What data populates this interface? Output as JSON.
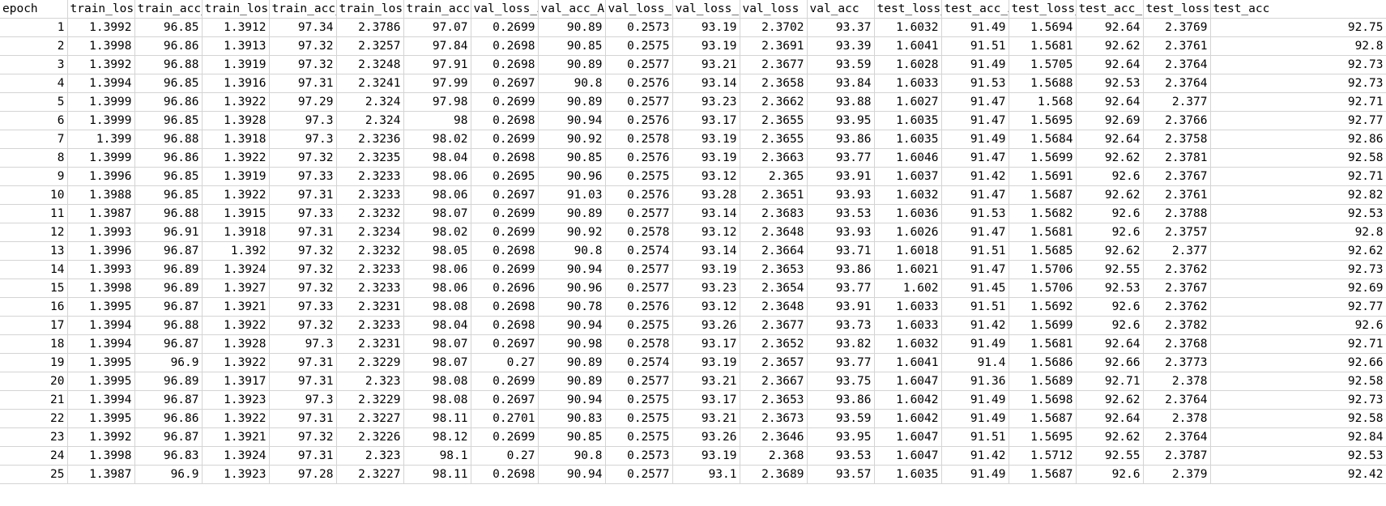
{
  "sheet": {
    "headers": [
      "epoch",
      "train_loss",
      "train_acc_",
      "train_loss",
      "train_acc_",
      "train_loss",
      "train_acc",
      "val_loss_A",
      "val_acc_A",
      "val_loss_B",
      "val_loss_B",
      "val_loss",
      "val_acc",
      "test_loss_",
      "test_acc_A",
      "test_loss_",
      "test_acc_B",
      "test_loss",
      "test_acc"
    ],
    "rows": [
      [
        "1",
        "1.3992",
        "96.85",
        "1.3912",
        "97.34",
        "2.3786",
        "97.07",
        "0.2699",
        "90.89",
        "0.2573",
        "93.19",
        "2.3702",
        "93.37",
        "1.6032",
        "91.49",
        "1.5694",
        "92.64",
        "2.3769",
        "92.75"
      ],
      [
        "2",
        "1.3998",
        "96.86",
        "1.3913",
        "97.32",
        "2.3257",
        "97.84",
        "0.2698",
        "90.85",
        "0.2575",
        "93.19",
        "2.3691",
        "93.39",
        "1.6041",
        "91.51",
        "1.5681",
        "92.62",
        "2.3761",
        "92.8"
      ],
      [
        "3",
        "1.3992",
        "96.88",
        "1.3919",
        "97.32",
        "2.3248",
        "97.91",
        "0.2698",
        "90.89",
        "0.2577",
        "93.21",
        "2.3677",
        "93.59",
        "1.6028",
        "91.49",
        "1.5705",
        "92.64",
        "2.3764",
        "92.73"
      ],
      [
        "4",
        "1.3994",
        "96.85",
        "1.3916",
        "97.31",
        "2.3241",
        "97.99",
        "0.2697",
        "90.8",
        "0.2576",
        "93.14",
        "2.3658",
        "93.84",
        "1.6033",
        "91.53",
        "1.5688",
        "92.53",
        "2.3764",
        "92.73"
      ],
      [
        "5",
        "1.3999",
        "96.86",
        "1.3922",
        "97.29",
        "2.324",
        "97.98",
        "0.2699",
        "90.89",
        "0.2577",
        "93.23",
        "2.3662",
        "93.88",
        "1.6027",
        "91.47",
        "1.568",
        "92.64",
        "2.377",
        "92.71"
      ],
      [
        "6",
        "1.3999",
        "96.85",
        "1.3928",
        "97.3",
        "2.324",
        "98",
        "0.2698",
        "90.94",
        "0.2576",
        "93.17",
        "2.3655",
        "93.95",
        "1.6035",
        "91.47",
        "1.5695",
        "92.69",
        "2.3766",
        "92.77"
      ],
      [
        "7",
        "1.399",
        "96.88",
        "1.3918",
        "97.3",
        "2.3236",
        "98.02",
        "0.2699",
        "90.92",
        "0.2578",
        "93.19",
        "2.3655",
        "93.86",
        "1.6035",
        "91.49",
        "1.5684",
        "92.64",
        "2.3758",
        "92.86"
      ],
      [
        "8",
        "1.3999",
        "96.86",
        "1.3922",
        "97.32",
        "2.3235",
        "98.04",
        "0.2698",
        "90.85",
        "0.2576",
        "93.19",
        "2.3663",
        "93.77",
        "1.6046",
        "91.47",
        "1.5699",
        "92.62",
        "2.3781",
        "92.58"
      ],
      [
        "9",
        "1.3996",
        "96.85",
        "1.3919",
        "97.33",
        "2.3233",
        "98.06",
        "0.2695",
        "90.96",
        "0.2575",
        "93.12",
        "2.365",
        "93.91",
        "1.6037",
        "91.42",
        "1.5691",
        "92.6",
        "2.3767",
        "92.71"
      ],
      [
        "10",
        "1.3988",
        "96.85",
        "1.3922",
        "97.31",
        "2.3233",
        "98.06",
        "0.2697",
        "91.03",
        "0.2576",
        "93.28",
        "2.3651",
        "93.93",
        "1.6032",
        "91.47",
        "1.5687",
        "92.62",
        "2.3761",
        "92.82"
      ],
      [
        "11",
        "1.3987",
        "96.88",
        "1.3915",
        "97.33",
        "2.3232",
        "98.07",
        "0.2699",
        "90.89",
        "0.2577",
        "93.14",
        "2.3683",
        "93.53",
        "1.6036",
        "91.53",
        "1.5682",
        "92.6",
        "2.3788",
        "92.53"
      ],
      [
        "12",
        "1.3993",
        "96.91",
        "1.3918",
        "97.31",
        "2.3234",
        "98.02",
        "0.2699",
        "90.92",
        "0.2578",
        "93.12",
        "2.3648",
        "93.93",
        "1.6026",
        "91.47",
        "1.5681",
        "92.6",
        "2.3757",
        "92.8"
      ],
      [
        "13",
        "1.3996",
        "96.87",
        "1.392",
        "97.32",
        "2.3232",
        "98.05",
        "0.2698",
        "90.8",
        "0.2574",
        "93.14",
        "2.3664",
        "93.71",
        "1.6018",
        "91.51",
        "1.5685",
        "92.62",
        "2.377",
        "92.62"
      ],
      [
        "14",
        "1.3993",
        "96.89",
        "1.3924",
        "97.32",
        "2.3233",
        "98.06",
        "0.2699",
        "90.94",
        "0.2577",
        "93.19",
        "2.3653",
        "93.86",
        "1.6021",
        "91.47",
        "1.5706",
        "92.55",
        "2.3762",
        "92.73"
      ],
      [
        "15",
        "1.3998",
        "96.89",
        "1.3927",
        "97.32",
        "2.3233",
        "98.06",
        "0.2696",
        "90.96",
        "0.2577",
        "93.23",
        "2.3654",
        "93.77",
        "1.602",
        "91.45",
        "1.5706",
        "92.53",
        "2.3767",
        "92.69"
      ],
      [
        "16",
        "1.3995",
        "96.87",
        "1.3921",
        "97.33",
        "2.3231",
        "98.08",
        "0.2698",
        "90.78",
        "0.2576",
        "93.12",
        "2.3648",
        "93.91",
        "1.6033",
        "91.51",
        "1.5692",
        "92.6",
        "2.3762",
        "92.77"
      ],
      [
        "17",
        "1.3994",
        "96.88",
        "1.3922",
        "97.32",
        "2.3233",
        "98.04",
        "0.2698",
        "90.94",
        "0.2575",
        "93.26",
        "2.3677",
        "93.73",
        "1.6033",
        "91.42",
        "1.5699",
        "92.6",
        "2.3782",
        "92.6"
      ],
      [
        "18",
        "1.3994",
        "96.87",
        "1.3928",
        "97.3",
        "2.3231",
        "98.07",
        "0.2697",
        "90.98",
        "0.2578",
        "93.17",
        "2.3652",
        "93.82",
        "1.6032",
        "91.49",
        "1.5681",
        "92.64",
        "2.3768",
        "92.71"
      ],
      [
        "19",
        "1.3995",
        "96.9",
        "1.3922",
        "97.31",
        "2.3229",
        "98.07",
        "0.27",
        "90.89",
        "0.2574",
        "93.19",
        "2.3657",
        "93.77",
        "1.6041",
        "91.4",
        "1.5686",
        "92.66",
        "2.3773",
        "92.66"
      ],
      [
        "20",
        "1.3995",
        "96.89",
        "1.3917",
        "97.31",
        "2.323",
        "98.08",
        "0.2699",
        "90.89",
        "0.2577",
        "93.21",
        "2.3667",
        "93.75",
        "1.6047",
        "91.36",
        "1.5689",
        "92.71",
        "2.378",
        "92.58"
      ],
      [
        "21",
        "1.3994",
        "96.87",
        "1.3923",
        "97.3",
        "2.3229",
        "98.08",
        "0.2697",
        "90.94",
        "0.2575",
        "93.17",
        "2.3653",
        "93.86",
        "1.6042",
        "91.49",
        "1.5698",
        "92.62",
        "2.3764",
        "92.73"
      ],
      [
        "22",
        "1.3995",
        "96.86",
        "1.3922",
        "97.31",
        "2.3227",
        "98.11",
        "0.2701",
        "90.83",
        "0.2575",
        "93.21",
        "2.3673",
        "93.59",
        "1.6042",
        "91.49",
        "1.5687",
        "92.64",
        "2.378",
        "92.58"
      ],
      [
        "23",
        "1.3992",
        "96.87",
        "1.3921",
        "97.32",
        "2.3226",
        "98.12",
        "0.2699",
        "90.85",
        "0.2575",
        "93.26",
        "2.3646",
        "93.95",
        "1.6047",
        "91.51",
        "1.5695",
        "92.62",
        "2.3764",
        "92.84"
      ],
      [
        "24",
        "1.3998",
        "96.83",
        "1.3924",
        "97.31",
        "2.323",
        "98.1",
        "0.27",
        "90.8",
        "0.2573",
        "93.19",
        "2.368",
        "93.53",
        "1.6047",
        "91.42",
        "1.5712",
        "92.55",
        "2.3787",
        "92.53"
      ],
      [
        "25",
        "1.3987",
        "96.9",
        "1.3923",
        "97.28",
        "2.3227",
        "98.11",
        "0.2698",
        "90.94",
        "0.2577",
        "93.1",
        "2.3689",
        "93.57",
        "1.6035",
        "91.49",
        "1.5687",
        "92.6",
        "2.379",
        "92.42"
      ]
    ]
  }
}
